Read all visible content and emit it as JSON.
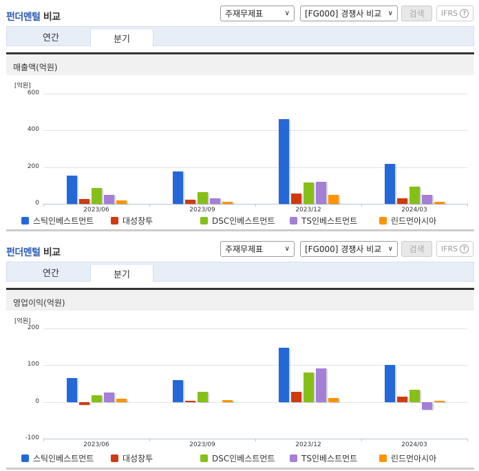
{
  "sections": [
    {
      "title_blue": "펀더멘털",
      "title_rest": " 비교",
      "select_statement": "주재무제표",
      "select_compare": "[FG000] 경쟁사 비교",
      "search_button": "검색",
      "ifrs_button": "IFRS",
      "help_icon": "?",
      "tabs": [
        {
          "label": "연간",
          "active": false
        },
        {
          "label": "분기",
          "active": true
        }
      ],
      "panel_title": "매출액(억원)"
    },
    {
      "title_blue": "펀더멘털",
      "title_rest": " 비교",
      "select_statement": "주재무제표",
      "select_compare": "[FG000] 경쟁사 비교",
      "search_button": "검색",
      "ifrs_button": "IFRS",
      "help_icon": "?",
      "tabs": [
        {
          "label": "연간",
          "active": false
        },
        {
          "label": "분기",
          "active": true
        }
      ],
      "panel_title": "영업이익(억원)"
    }
  ],
  "colors": {
    "스틱인베스트먼트": "#2468d8",
    "대성창투": "#d03a10",
    "DSC인베스트먼트": "#86bf17",
    "TS인베스트먼트": "#a57ed8",
    "린드먼아시아": "#ff9400"
  },
  "chart_data": [
    {
      "type": "bar",
      "title": "매출액(억원)",
      "ylabel": "[억원]",
      "xlabel": "",
      "categories": [
        "2023/06",
        "2023/09",
        "2023/12",
        "2024/03"
      ],
      "yticks": [
        0,
        200,
        400,
        600
      ],
      "ylim": [
        0,
        600
      ],
      "grid": true,
      "legend_position": "bottom",
      "series": [
        {
          "name": "스틱인베스트먼트",
          "color": "#2468d8",
          "values": [
            155,
            178,
            460,
            218
          ]
        },
        {
          "name": "대성창투",
          "color": "#d03a10",
          "values": [
            25,
            22,
            55,
            30
          ]
        },
        {
          "name": "DSC인베스트먼트",
          "color": "#86bf17",
          "values": [
            85,
            62,
            115,
            92
          ]
        },
        {
          "name": "TS인베스트먼트",
          "color": "#a57ed8",
          "values": [
            48,
            30,
            120,
            48
          ]
        },
        {
          "name": "린드먼아시아",
          "color": "#ff9400",
          "values": [
            18,
            10,
            48,
            10
          ]
        }
      ]
    },
    {
      "type": "bar",
      "title": "영업이익(억원)",
      "ylabel": "[억원]",
      "xlabel": "",
      "categories": [
        "2023/06",
        "2023/09",
        "2023/12",
        "2024/03"
      ],
      "yticks": [
        -100,
        0,
        100,
        200
      ],
      "ylim": [
        -100,
        200
      ],
      "grid": true,
      "legend_position": "bottom",
      "series": [
        {
          "name": "스틱인베스트먼트",
          "color": "#2468d8",
          "values": [
            65,
            60,
            148,
            100
          ]
        },
        {
          "name": "대성창투",
          "color": "#d03a10",
          "values": [
            -8,
            3,
            28,
            15
          ]
        },
        {
          "name": "DSC인베스트먼트",
          "color": "#86bf17",
          "values": [
            18,
            28,
            80,
            33
          ]
        },
        {
          "name": "TS인베스트먼트",
          "color": "#a57ed8",
          "values": [
            25,
            0,
            92,
            -22
          ]
        },
        {
          "name": "린드먼아시아",
          "color": "#ff9400",
          "values": [
            8,
            5,
            10,
            3
          ]
        }
      ]
    }
  ]
}
